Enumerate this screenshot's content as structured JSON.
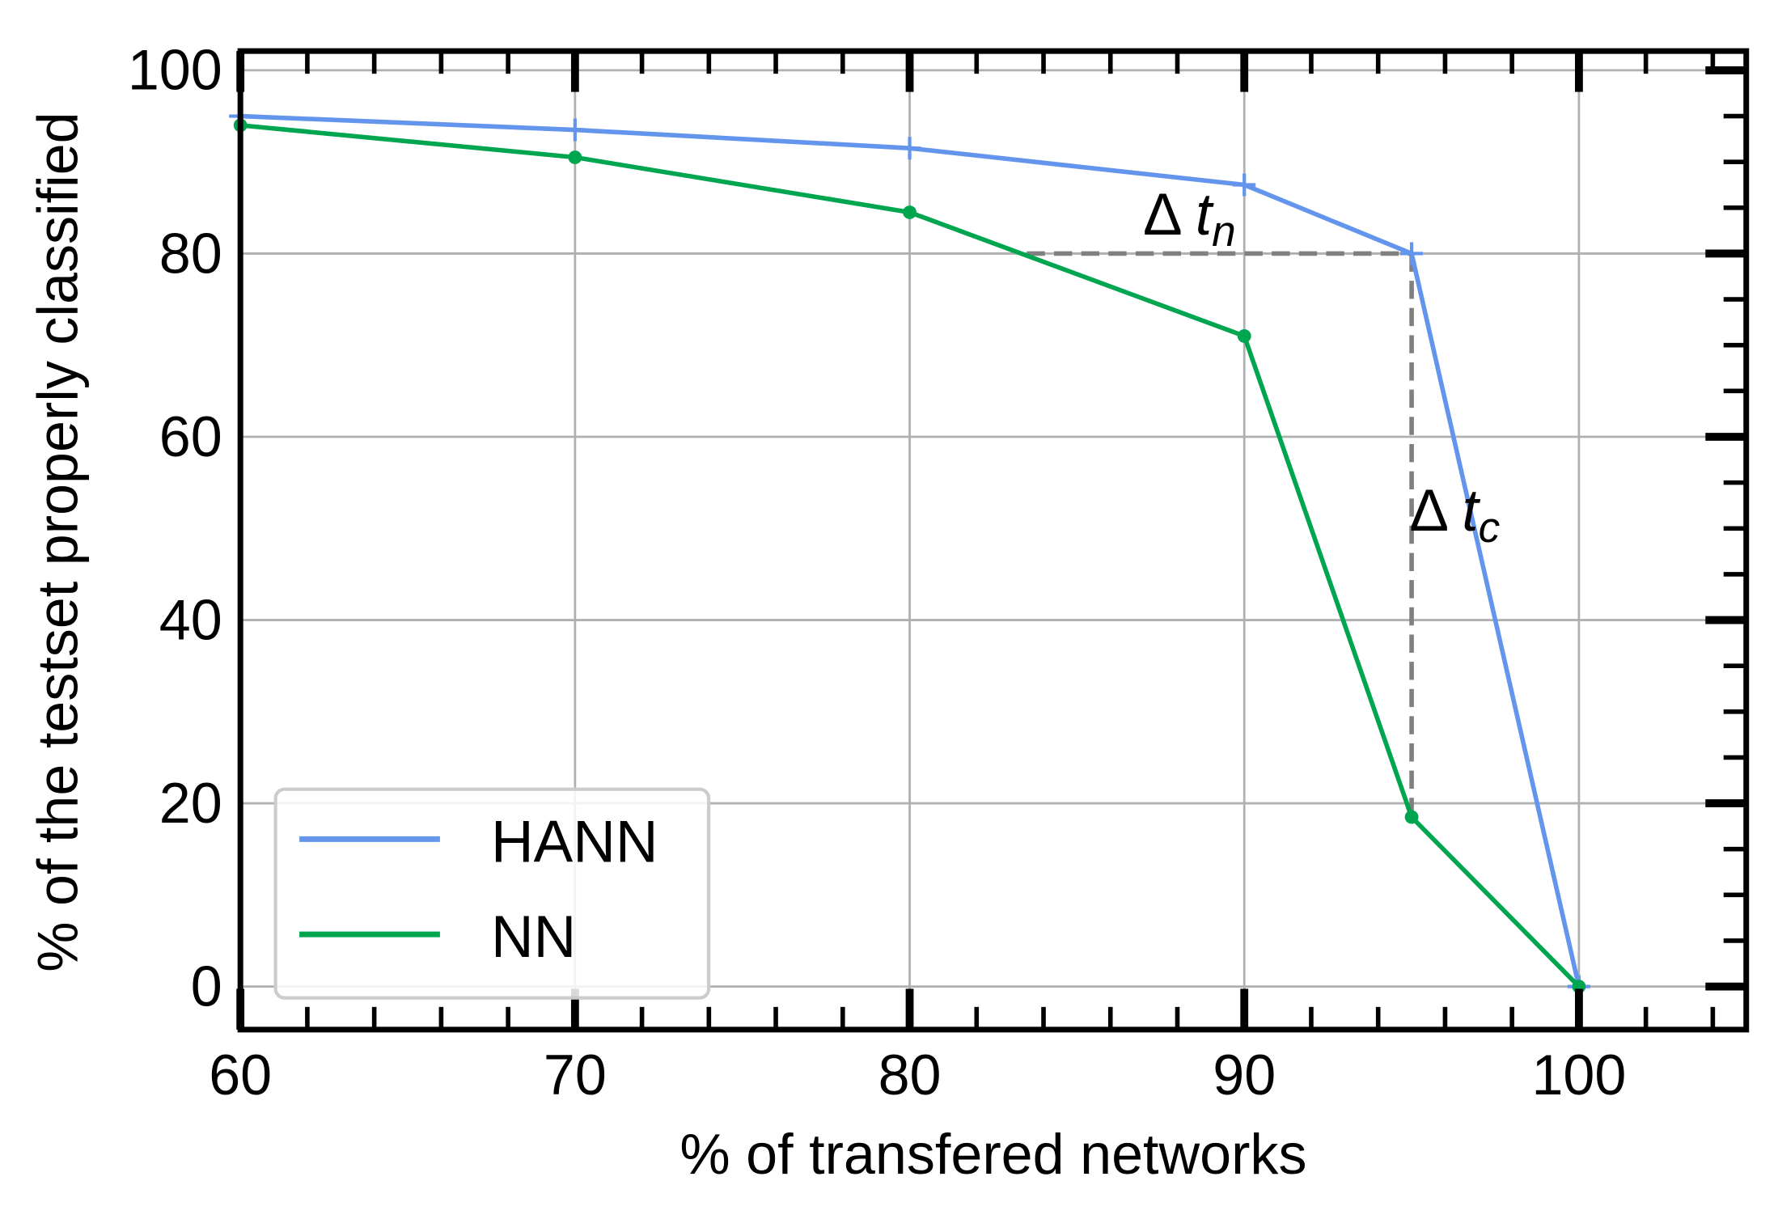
{
  "chart_data": {
    "type": "line",
    "xlabel": "% of transfered networks",
    "ylabel": "% of the testset properly classified",
    "xlim": [
      60,
      105
    ],
    "ylim": [
      -4.7,
      102.1
    ],
    "xticks": [
      60,
      70,
      80,
      90,
      100
    ],
    "yticks": [
      0,
      20,
      40,
      60,
      80,
      100
    ],
    "grid": true,
    "legend_position": "lower-left",
    "series": [
      {
        "name": "HANN",
        "color": "#6495ED",
        "marker": "plus",
        "x": [
          60,
          70,
          80,
          90,
          95,
          100
        ],
        "y": [
          95,
          93.5,
          91.5,
          87.5,
          80,
          0
        ]
      },
      {
        "name": "NN",
        "color": "#00A550",
        "marker": "dot",
        "x": [
          60,
          70,
          80,
          90,
          95,
          100
        ],
        "y": [
          94,
          90.5,
          84.5,
          71,
          18.5,
          0
        ]
      }
    ],
    "annotations": [
      {
        "text": "Δ",
        "subtext": "t",
        "sub": "n",
        "x": 87,
        "y": 83
      },
      {
        "text": "Δ",
        "subtext": "t",
        "sub": "c",
        "x": 95,
        "y": 52
      }
    ],
    "reference_lines": [
      {
        "style": "dashed",
        "color": "#808080",
        "x": [
          83.5,
          95
        ],
        "y": [
          80,
          80
        ]
      },
      {
        "style": "dashed",
        "color": "#808080",
        "x": [
          95,
          95
        ],
        "y": [
          80,
          18.5
        ]
      }
    ]
  }
}
